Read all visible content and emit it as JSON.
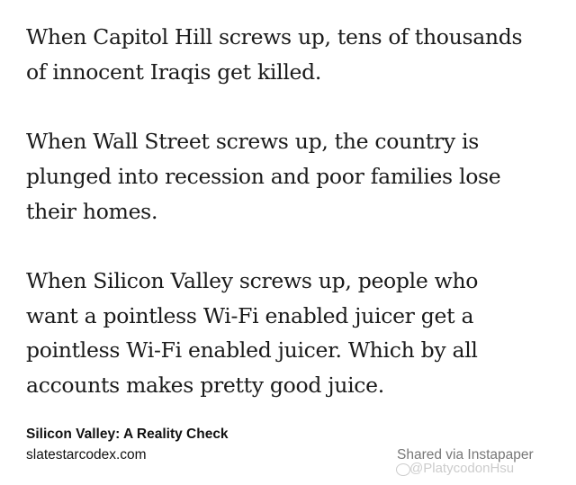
{
  "quote": {
    "paragraphs": [
      [
        "When Capitol Hill screws up, tens of thousands",
        "of innocent Iraqis get killed."
      ],
      [
        "When Wall Street screws up, the country is",
        "plunged into recession and poor families lose",
        "their homes."
      ],
      [
        "When Silicon Valley screws up, people who",
        "want a pointless Wi-Fi enabled juicer get a",
        "pointless Wi-Fi enabled juicer. Which by all",
        "accounts makes pretty good juice."
      ]
    ]
  },
  "footer": {
    "article_title": "Silicon Valley: A Reality Check",
    "source": "slatestarcodex.com",
    "shared_via": "Shared via Instapaper"
  },
  "watermark": {
    "text": "@PlatycodonHsu",
    "icon": "weibo-icon"
  }
}
